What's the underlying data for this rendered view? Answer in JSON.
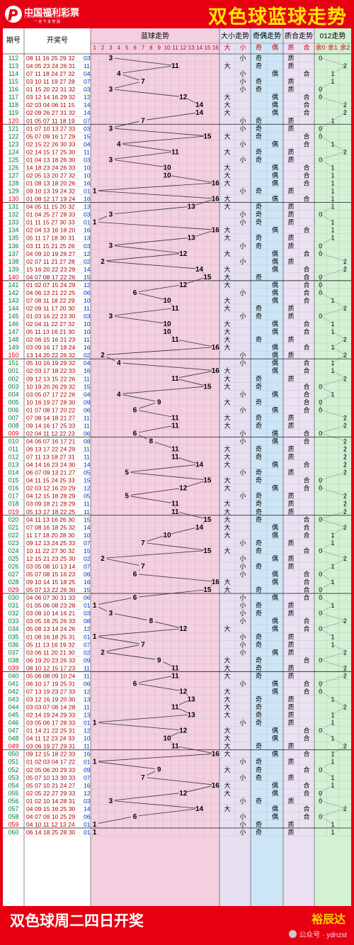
{
  "header": {
    "logo_cn": "中国福利彩票",
    "logo_en": "CHINA WELFARE LOTTERY",
    "logo_sub": "一 走 千 走 势 图",
    "title": "双色球蓝球走势"
  },
  "footer": {
    "text": "双色球周二四日开奖",
    "brand": "裕辰达",
    "watermark": "公众号 · ydnzst"
  },
  "colors": {
    "accent": "#e60012",
    "title": "#ffe600",
    "zone_blue": "#f4cfe0",
    "zone_size": "#e6e0f2",
    "zone_parity": "#cde6f7",
    "zone_prime": "#ece1f2",
    "zone_012": "#d3f2d3",
    "issue": "#007a3d",
    "issue_end": "#e60012"
  },
  "chart_data": {
    "type": "table",
    "columns": {
      "issue": "期号",
      "numbers": "开奖号",
      "blue": "蓝球走势",
      "size": "大小走势",
      "parity": "奇偶走势",
      "prime": "质合走势",
      "mod3": "012走势"
    },
    "blue_ticks": [
      "1",
      "2",
      "3",
      "4",
      "5",
      "6",
      "7",
      "8",
      "9",
      "10",
      "11",
      "12",
      "13",
      "14",
      "15",
      "16"
    ],
    "sub_labels": {
      "size": [
        "大",
        "小"
      ],
      "parity": [
        "奇",
        "偶"
      ],
      "prime": [
        "质",
        "合"
      ],
      "mod3": [
        "余0",
        "余1",
        "余2"
      ]
    },
    "rows": [
      [
        "112",
        "08 11 16 25 29 32",
        3
      ],
      [
        "113",
        "04 05 23 24 26 31",
        11
      ],
      [
        "114",
        "07 11 18 24 27 32",
        4
      ],
      [
        "115",
        "03 10 11 19 27 28",
        7
      ],
      [
        "116",
        "01 15 20 22 31 32",
        3
      ],
      [
        "117",
        "03 12 14 16 29 32",
        12
      ],
      [
        "118",
        "02 03 04 06 11 15",
        14
      ],
      [
        "119",
        "02 09 26 27 31 32",
        14
      ],
      [
        "120",
        "01 05 07 11 18 19",
        7
      ],
      [
        "121",
        "01 07 10 13 27 33",
        3
      ],
      [
        "122",
        "05 07 09 16 17 29",
        15
      ],
      [
        "123",
        "02 15 22 26 30 33",
        4
      ],
      [
        "124",
        "02 14 15 17 25 30",
        11
      ],
      [
        "125",
        "01 04 13 18 26 30",
        3
      ],
      [
        "126",
        "14 18 23 24 26 33",
        10
      ],
      [
        "127",
        "02 05 13 20 27 32",
        10
      ],
      [
        "128",
        "01 08 13 18 20 26",
        16
      ],
      [
        "129",
        "09 10 13 19 24 32",
        1
      ],
      [
        "130",
        "01 08 12 17 19 24",
        16
      ],
      [
        "131",
        "04 05 11 15 20 32",
        13
      ],
      [
        "132",
        "01 04 25 27 28 33",
        3
      ],
      [
        "133",
        "01 11 15 27 30 33",
        1
      ],
      [
        "134",
        "02 04 13 16 18 20",
        16
      ],
      [
        "135",
        "05 11 17 18 30 31",
        13
      ],
      [
        "136",
        "03 11 15 21 25 26",
        3
      ],
      [
        "137",
        "04 09 10 19 26 27",
        12
      ],
      [
        "138",
        "02 07 11 21 27 28",
        2
      ],
      [
        "139",
        "15 16 20 22 23 29",
        14
      ],
      [
        "140",
        "04 07 08 17 22 26",
        15
      ],
      [
        "141",
        "01 02 07 15 24 29",
        12
      ],
      [
        "142",
        "04 06 13 21 22 25",
        6
      ],
      [
        "143",
        "07 08 11 18 22 29",
        10
      ],
      [
        "144",
        "02 09 11 17 20 30",
        11
      ],
      [
        "145",
        "01 03 16 22 23 30",
        3
      ],
      [
        "146",
        "02 04 11 22 27 32",
        10
      ],
      [
        "147",
        "05 11 13 16 21 30",
        10
      ],
      [
        "148",
        "02 06 15 16 21 23",
        11
      ],
      [
        "149",
        "03 09 16 17 18 24",
        16
      ],
      [
        "150",
        "13 14 20 22 26 32",
        2
      ],
      [
        "151",
        "05 10 16 19 29 32",
        4
      ],
      [
        "001",
        "02 03 17 18 22 33",
        16
      ],
      [
        "002",
        "09 12 13 15 22 26",
        11
      ],
      [
        "003",
        "10 19 20 26 29 32",
        15
      ],
      [
        "004",
        "03 05 07 17 22 26",
        4
      ],
      [
        "005",
        "10 16 19 27 28 30",
        9
      ],
      [
        "006",
        "01 07 08 17 20 22",
        6
      ],
      [
        "007",
        "07 08 14 18 21 27",
        11
      ],
      [
        "008",
        "09 14 16 17 25 33",
        11
      ],
      [
        "009",
        "02 04 11 12 22 23",
        6
      ],
      [
        "010",
        "04 06 07 16 17 21",
        8
      ],
      [
        "011",
        "06 13 17 22 24 29",
        11
      ],
      [
        "012",
        "07 11 13 18 27 31",
        11
      ],
      [
        "013",
        "04 14 16 23 24 30",
        14
      ],
      [
        "014",
        "06 07 09 13 21 27",
        5
      ],
      [
        "015",
        "04 11 15 24 25 33",
        15
      ],
      [
        "016",
        "02 03 12 16 20 29",
        12
      ],
      [
        "017",
        "04 12 15 18 28 29",
        5
      ],
      [
        "018",
        "03 09 18 21 28 29",
        11
      ],
      [
        "019",
        "05 13 17 18 22 25",
        11
      ],
      [
        "020",
        "04 11 13 16 26 30",
        15
      ],
      [
        "021",
        "07 08 16 18 25 32",
        14
      ],
      [
        "022",
        "11 17 18 20 28 30",
        10
      ],
      [
        "023",
        "09 12 13 24 25 33",
        7
      ],
      [
        "024",
        "10 11 22 27 30 32",
        15
      ],
      [
        "025",
        "12 15 21 23 25 30",
        2
      ],
      [
        "026",
        "03 05 08 10 13 14",
        7
      ],
      [
        "027",
        "05 07 08 15 16 23",
        6
      ],
      [
        "028",
        "09 10 14 15 18 25",
        16
      ],
      [
        "029",
        "05 07 13 22 26 30",
        15
      ],
      [
        "030",
        "04 06 07 30 31 33",
        6
      ],
      [
        "031",
        "01 05 06 08 23 28",
        1
      ],
      [
        "032",
        "03 08 10 14 16 21",
        3
      ],
      [
        "033",
        "03 05 18 25 26 33",
        8
      ],
      [
        "034",
        "05 08 13 14 24 26",
        12
      ],
      [
        "035",
        "01 08 16 18 25 31",
        1
      ],
      [
        "036",
        "05 11 13 16 19 32",
        7
      ],
      [
        "037",
        "03 06 11 20 21 30",
        2
      ],
      [
        "038",
        "06 19 20 23 26 33",
        9
      ],
      [
        "039",
        "08 10 12 15 17 23",
        11
      ],
      [
        "040",
        "05 06 08 09 10 24",
        11
      ],
      [
        "041",
        "06 10 17 19 25 31",
        6
      ],
      [
        "042",
        "07 13 19 23 27 33",
        12
      ],
      [
        "043",
        "03 12 16 19 20 30",
        13
      ],
      [
        "044",
        "03 03 07 08 14 28",
        11
      ],
      [
        "045",
        "02 14 19 24 29 33",
        13
      ],
      [
        "046",
        "03 05 06 17 28 33",
        1
      ],
      [
        "047",
        "01 14 21 22 25 31",
        12
      ],
      [
        "048",
        "04 11 12 23 24 33",
        10
      ],
      [
        "049",
        "03 06 19 27 29 31",
        11
      ],
      [
        "050",
        "09 12 15 18 22 33",
        16
      ],
      [
        "051",
        "01 02 03 04 17 22",
        1
      ],
      [
        "052",
        "02 05 06 20 29 33",
        9
      ],
      [
        "053",
        "05 07 10 13 30 33",
        7
      ],
      [
        "054",
        "05 07 10 21 24 27",
        16
      ],
      [
        "055",
        "02 05 22 27 29 33",
        12
      ],
      [
        "056",
        "01 02 10 14 28 31",
        3
      ],
      [
        "057",
        "04 09 15 16 25 30",
        14
      ],
      [
        "058",
        "04 07 09 10 25 29",
        6
      ],
      [
        "059",
        "04 10 11 12 13 24",
        1
      ],
      [
        "060",
        "06 14 18 25 28 30",
        1
      ]
    ]
  }
}
